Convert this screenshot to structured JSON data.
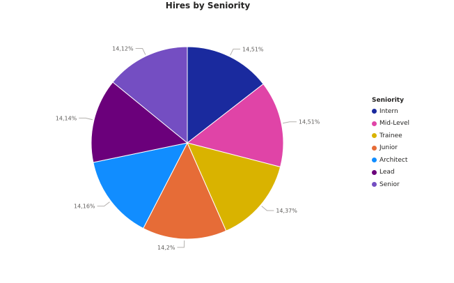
{
  "chart_data": {
    "type": "pie",
    "title": "Hires by Seniority",
    "legend_title": "Seniority",
    "legend_position": "right",
    "slices": [
      {
        "name": "Intern",
        "value": 14.51,
        "label": "14,51%",
        "color": "#1a2a9e"
      },
      {
        "name": "Mid-Level",
        "value": 14.51,
        "label": "14,51%",
        "color": "#e044a7"
      },
      {
        "name": "Trainee",
        "value": 14.37,
        "label": "14,37%",
        "color": "#d9b300"
      },
      {
        "name": "Junior",
        "value": 14.2,
        "label": "14,2%",
        "color": "#e66c37"
      },
      {
        "name": "Architect",
        "value": 14.16,
        "label": "14,16%",
        "color": "#118dff"
      },
      {
        "name": "Lead",
        "value": 14.14,
        "label": "14,14%",
        "color": "#6b007b"
      },
      {
        "name": "Senior",
        "value": 14.12,
        "label": "14,12%",
        "color": "#744ec2"
      }
    ]
  }
}
